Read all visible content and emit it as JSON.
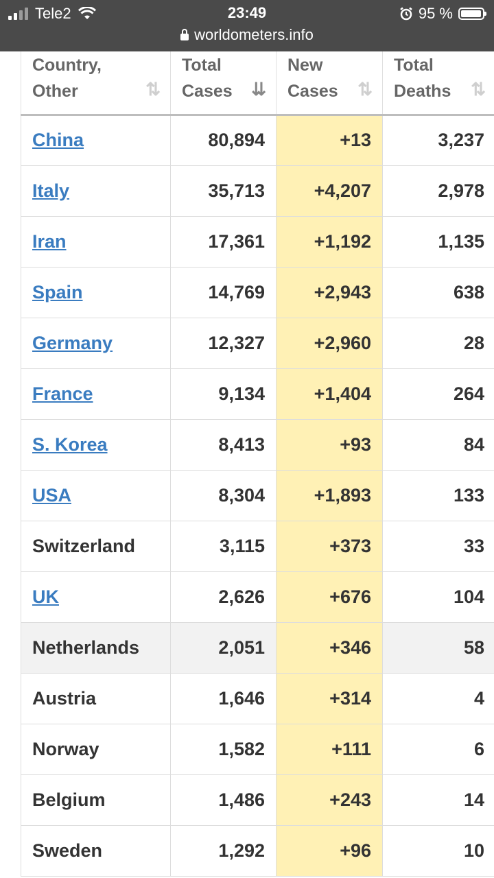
{
  "status": {
    "carrier": "Tele2",
    "time": "23:49",
    "battery": "95 %",
    "url": "worldometers.info"
  },
  "table": {
    "headers": [
      {
        "line1": "Country,",
        "line2": "Other"
      },
      {
        "line1": "Total",
        "line2": "Cases"
      },
      {
        "line1": "New",
        "line2": "Cases"
      },
      {
        "line1": "Total",
        "line2": "Deaths"
      }
    ],
    "rows": [
      {
        "country": "China",
        "link": true,
        "total": "80,894",
        "new": "+13",
        "deaths": "3,237"
      },
      {
        "country": "Italy",
        "link": true,
        "total": "35,713",
        "new": "+4,207",
        "deaths": "2,978"
      },
      {
        "country": "Iran",
        "link": true,
        "total": "17,361",
        "new": "+1,192",
        "deaths": "1,135"
      },
      {
        "country": "Spain",
        "link": true,
        "total": "14,769",
        "new": "+2,943",
        "deaths": "638"
      },
      {
        "country": "Germany",
        "link": true,
        "total": "12,327",
        "new": "+2,960",
        "deaths": "28"
      },
      {
        "country": "France",
        "link": true,
        "total": "9,134",
        "new": "+1,404",
        "deaths": "264"
      },
      {
        "country": "S. Korea",
        "link": true,
        "total": "8,413",
        "new": "+93",
        "deaths": "84"
      },
      {
        "country": "USA",
        "link": true,
        "total": "8,304",
        "new": "+1,893",
        "deaths": "133"
      },
      {
        "country": "Switzerland",
        "link": false,
        "total": "3,115",
        "new": "+373",
        "deaths": "33"
      },
      {
        "country": "UK",
        "link": true,
        "total": "2,626",
        "new": "+676",
        "deaths": "104"
      },
      {
        "country": "Netherlands",
        "link": false,
        "total": "2,051",
        "new": "+346",
        "deaths": "58",
        "highlight": true
      },
      {
        "country": "Austria",
        "link": false,
        "total": "1,646",
        "new": "+314",
        "deaths": "4"
      },
      {
        "country": "Norway",
        "link": false,
        "total": "1,582",
        "new": "+111",
        "deaths": "6"
      },
      {
        "country": "Belgium",
        "link": false,
        "total": "1,486",
        "new": "+243",
        "deaths": "14"
      },
      {
        "country": "Sweden",
        "link": false,
        "total": "1,292",
        "new": "+96",
        "deaths": "10"
      }
    ]
  },
  "colors": {
    "link": "#3a7cc0",
    "new_cases_bg": "#fff1b5",
    "statusbar": "#4a4a4a"
  }
}
